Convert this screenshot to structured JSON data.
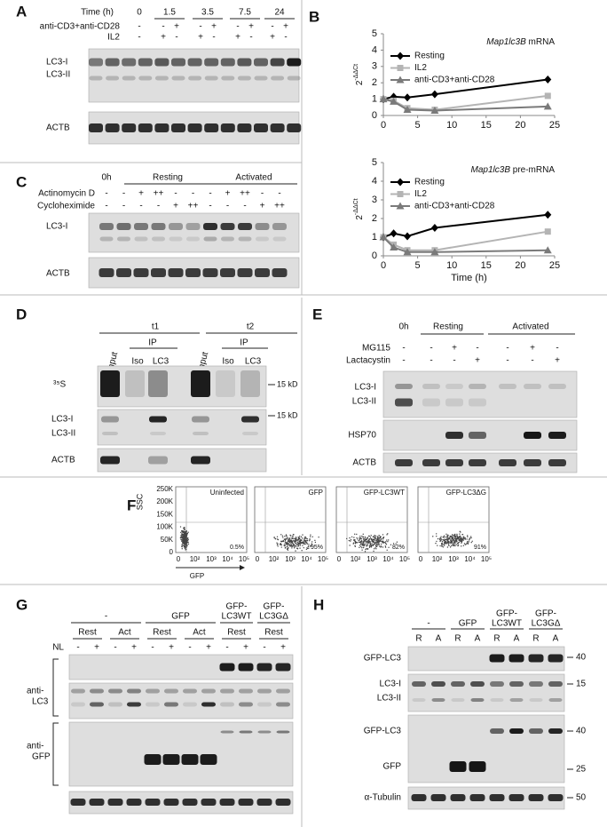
{
  "panels": {
    "A": {
      "label": "A",
      "time_label": "Time (h)",
      "times": [
        "0",
        "1.5",
        "3.5",
        "7.5",
        "24"
      ],
      "row1_label": "anti-CD3+anti-CD28",
      "row1": [
        "-",
        "-",
        "+",
        "-",
        "+",
        "-",
        "+",
        "-",
        "+"
      ],
      "row2_label": "IL2",
      "row2": [
        "-",
        "+",
        "-",
        "+",
        "-",
        "+",
        "-",
        "+",
        "-"
      ],
      "blot_labels": [
        "LC3-I",
        "LC3-II",
        "ACTB"
      ]
    },
    "B": {
      "label": "B"
    },
    "C": {
      "label": "C",
      "groups": [
        "0h",
        "Resting",
        "Activated"
      ],
      "row1_label": "Actinomycin D",
      "row1": [
        "-",
        "-",
        "+",
        "++",
        "-",
        "-",
        "-",
        "+",
        "++",
        "-",
        "-"
      ],
      "row2_label": "Cycloheximide",
      "row2": [
        "-",
        "-",
        "-",
        "-",
        "+",
        "++",
        "-",
        "-",
        "-",
        "+",
        "++"
      ],
      "blot_labels": [
        "LC3-I",
        "ACTB"
      ]
    },
    "D": {
      "label": "D",
      "groups": [
        "t1",
        "t2"
      ],
      "ip": [
        "IP",
        "IP"
      ],
      "lanes": [
        "input",
        "Iso",
        "LC3",
        "input",
        "Iso",
        "LC3"
      ],
      "blot_labels": [
        "³⁵S",
        "LC3-I",
        "LC3-II",
        "ACTB"
      ],
      "markers": [
        "15 kD",
        "15 kD"
      ]
    },
    "E": {
      "label": "E",
      "groups": [
        "0h",
        "Resting",
        "Activated"
      ],
      "row1_label": "MG115",
      "row1": [
        "-",
        "-",
        "+",
        "-",
        "-",
        "+",
        "-"
      ],
      "row2_label": "Lactacystin",
      "row2": [
        "-",
        "-",
        "-",
        "+",
        "-",
        "-",
        "+"
      ],
      "blot_labels": [
        "LC3-I",
        "LC3-II",
        "HSP70",
        "ACTB"
      ]
    },
    "F": {
      "label": "F",
      "ylabel": "SSC",
      "yticks": [
        "0",
        "50K",
        "100K",
        "150K",
        "200K",
        "250K"
      ],
      "xticks": [
        "0",
        "10²",
        "10³",
        "10⁴",
        "10⁵"
      ],
      "xlabel": "GFP",
      "plots": [
        {
          "title": "Uninfected",
          "percent": "0.5%"
        },
        {
          "title": "GFP",
          "percent": "95%"
        },
        {
          "title": "GFP-LC3WT",
          "percent": "82%"
        },
        {
          "title": "GFP-LC3ΔG",
          "percent": "91%"
        }
      ]
    },
    "G": {
      "label": "G",
      "groups": [
        [
          "-"
        ],
        [
          "GFP"
        ],
        [
          "GFP-",
          "LC3WT"
        ],
        [
          "GFP-",
          "LC3GΔ"
        ]
      ],
      "conditions": [
        "Rest",
        "Act",
        "Rest",
        "Act",
        "Rest",
        "Rest"
      ],
      "nl_label": "NL",
      "nl": [
        "-",
        "+",
        "-",
        "+",
        "-",
        "+",
        "-",
        "+",
        "-",
        "+",
        "-",
        "+"
      ],
      "blot_labels": [
        [
          "anti-",
          "LC3"
        ],
        [
          "anti-",
          "GFP"
        ]
      ]
    },
    "H": {
      "label": "H",
      "groups": [
        [
          "-"
        ],
        [
          "GFP"
        ],
        [
          "GFP-",
          "LC3WT"
        ],
        [
          "GFP-",
          "LC3GΔ"
        ]
      ],
      "lanes": [
        "R",
        "A",
        "R",
        "A",
        "R",
        "A",
        "R",
        "A"
      ],
      "blot_labels": [
        "GFP-LC3",
        "LC3-I",
        "LC3-II",
        "GFP-LC3",
        "GFP",
        "α-Tubulin"
      ],
      "markers": [
        "40",
        "15",
        "40",
        "25",
        "50"
      ]
    }
  },
  "chart_data": [
    {
      "type": "line",
      "title_gene": "Map1lc3B",
      "title_rest": "mRNA",
      "ylabel_base": "2",
      "ylabel_exp": "-ΔΔCt",
      "x": [
        0,
        1.5,
        3.5,
        7.5,
        24
      ],
      "xlim": [
        0,
        25
      ],
      "xticks": [
        0,
        5,
        10,
        15,
        20,
        25
      ],
      "ylim": [
        0,
        5
      ],
      "yticks": [
        0,
        1,
        2,
        3,
        4,
        5
      ],
      "series": [
        {
          "name": "Resting",
          "color": "#000000",
          "marker": "diamond",
          "values": [
            1,
            1.15,
            1.1,
            1.3,
            2.2
          ]
        },
        {
          "name": "IL2",
          "color": "#b4b4b4",
          "marker": "square",
          "values": [
            1,
            0.9,
            0.45,
            0.35,
            1.2
          ]
        },
        {
          "name": "anti-CD3+anti-CD28",
          "color": "#7a7a7a",
          "marker": "triangle",
          "values": [
            1,
            0.85,
            0.35,
            0.3,
            0.55
          ]
        }
      ]
    },
    {
      "type": "line",
      "title_gene": "Map1lc3B",
      "title_rest": "pre-mRNA",
      "ylabel_base": "2",
      "ylabel_exp": "-ΔΔCt",
      "xlabel": "Time (h)",
      "x": [
        0,
        1.5,
        3.5,
        7.5,
        24
      ],
      "xlim": [
        0,
        25
      ],
      "xticks": [
        0,
        5,
        10,
        15,
        20,
        25
      ],
      "ylim": [
        0,
        5
      ],
      "yticks": [
        0,
        1,
        2,
        3,
        4,
        5
      ],
      "series": [
        {
          "name": "Resting",
          "color": "#000000",
          "marker": "diamond",
          "values": [
            1,
            1.2,
            1.05,
            1.5,
            2.2
          ]
        },
        {
          "name": "IL2",
          "color": "#b4b4b4",
          "marker": "square",
          "values": [
            1,
            0.6,
            0.3,
            0.3,
            1.3
          ]
        },
        {
          "name": "anti-CD3+anti-CD28",
          "color": "#7a7a7a",
          "marker": "triangle",
          "values": [
            1,
            0.45,
            0.2,
            0.2,
            0.3
          ]
        }
      ]
    }
  ]
}
